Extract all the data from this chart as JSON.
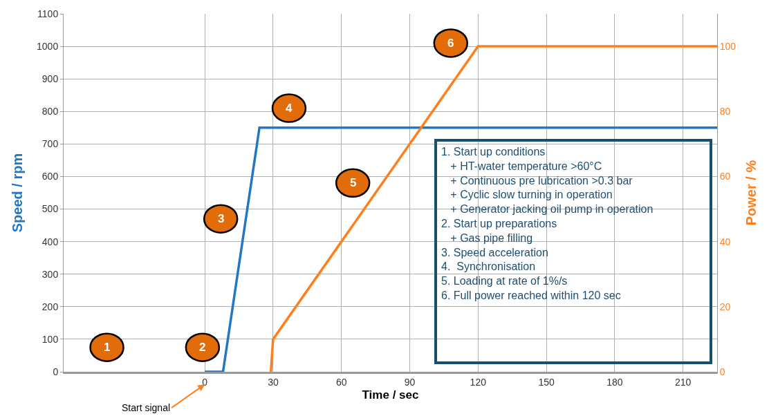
{
  "chart_data": {
    "type": "line",
    "xlabel": "Time / sec",
    "ylabel": "Speed / rpm",
    "y2label": "Power / %",
    "xlim": [
      -62,
      225
    ],
    "xticks": [
      0,
      30,
      60,
      90,
      120,
      150,
      180,
      210
    ],
    "ylim": [
      0,
      1100
    ],
    "yticks": [
      0,
      100,
      200,
      300,
      400,
      500,
      600,
      700,
      800,
      900,
      1000,
      1100
    ],
    "y2lim": [
      0,
      110
    ],
    "y2ticks": [
      0,
      20,
      40,
      60,
      80,
      100
    ],
    "grid": true,
    "marker": "none",
    "line_style": "solid",
    "series": [
      {
        "color": "#2277c4",
        "x": [
          0,
          8,
          24,
          225
        ],
        "values": [
          0,
          0,
          750,
          750
        ]
      },
      {
        "color": "#ff7f1e",
        "axis": "y2",
        "x": [
          29,
          30,
          120,
          225
        ],
        "values": [
          0,
          10,
          100,
          100
        ]
      }
    ],
    "annotations": [
      "1",
      "2",
      "3",
      "4",
      "5",
      "6",
      "1. Start up conditions\n   + HT-water temperature >60°C\n   + Continuous pre lubrication >0.3 bar\n   + Cyclic slow turning in operation\n   + Generator jacking oil pump in operation\n2. Start up preparations\n   + Gas pipe filling\n3. Speed acceleration\n4.  Synchronisation\n5. Loading at rate of 1%/s\n6. Full power reached within 120 sec",
      "Start signal"
    ]
  }
}
